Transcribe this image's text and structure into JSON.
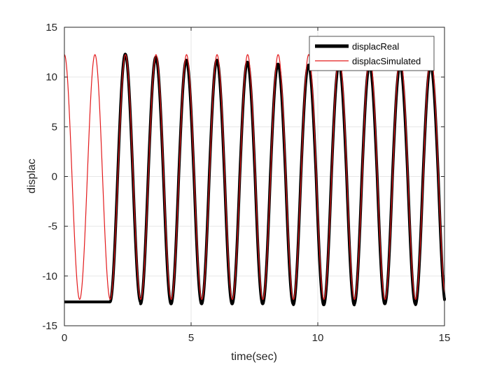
{
  "chart_data": {
    "type": "line",
    "xlabel": "time(sec)",
    "ylabel": "displac",
    "xlim": [
      0,
      15
    ],
    "ylim": [
      -15,
      15
    ],
    "xticks": [
      0,
      5,
      10,
      15
    ],
    "yticks": [
      -15,
      -10,
      -5,
      0,
      5,
      10,
      15
    ],
    "grid": true,
    "legend_position": "top-right",
    "series": [
      {
        "name": "displacReal",
        "color": "#000000",
        "style": "thick solid",
        "description_points": {
          "flat_segment": {
            "x_start": 0,
            "x_end": 1.8,
            "y": -12.6
          },
          "oscillation_start": 1.8,
          "peaks": [
            12.3,
            12.0,
            11.7,
            11.7,
            11.5,
            11.3,
            11.2,
            11.3,
            11.2,
            11.2,
            11.2
          ],
          "troughs": [
            -12.6,
            -12.8,
            -12.8,
            -12.8,
            -12.8,
            -12.8,
            -12.9,
            -12.9,
            -12.8,
            -12.8,
            -12.9
          ],
          "end_value": -12.2
        }
      },
      {
        "name": "displacSimulated",
        "color": "#e31a1c",
        "style": "thin solid",
        "amplitude": 12.3,
        "offset": -0.05,
        "period": 1.205,
        "start_value": 12.3
      }
    ]
  },
  "legend": {
    "items": [
      {
        "label": "displacReal",
        "color": "#000000"
      },
      {
        "label": "displacSimulated",
        "color": "#e31a1c"
      }
    ]
  }
}
